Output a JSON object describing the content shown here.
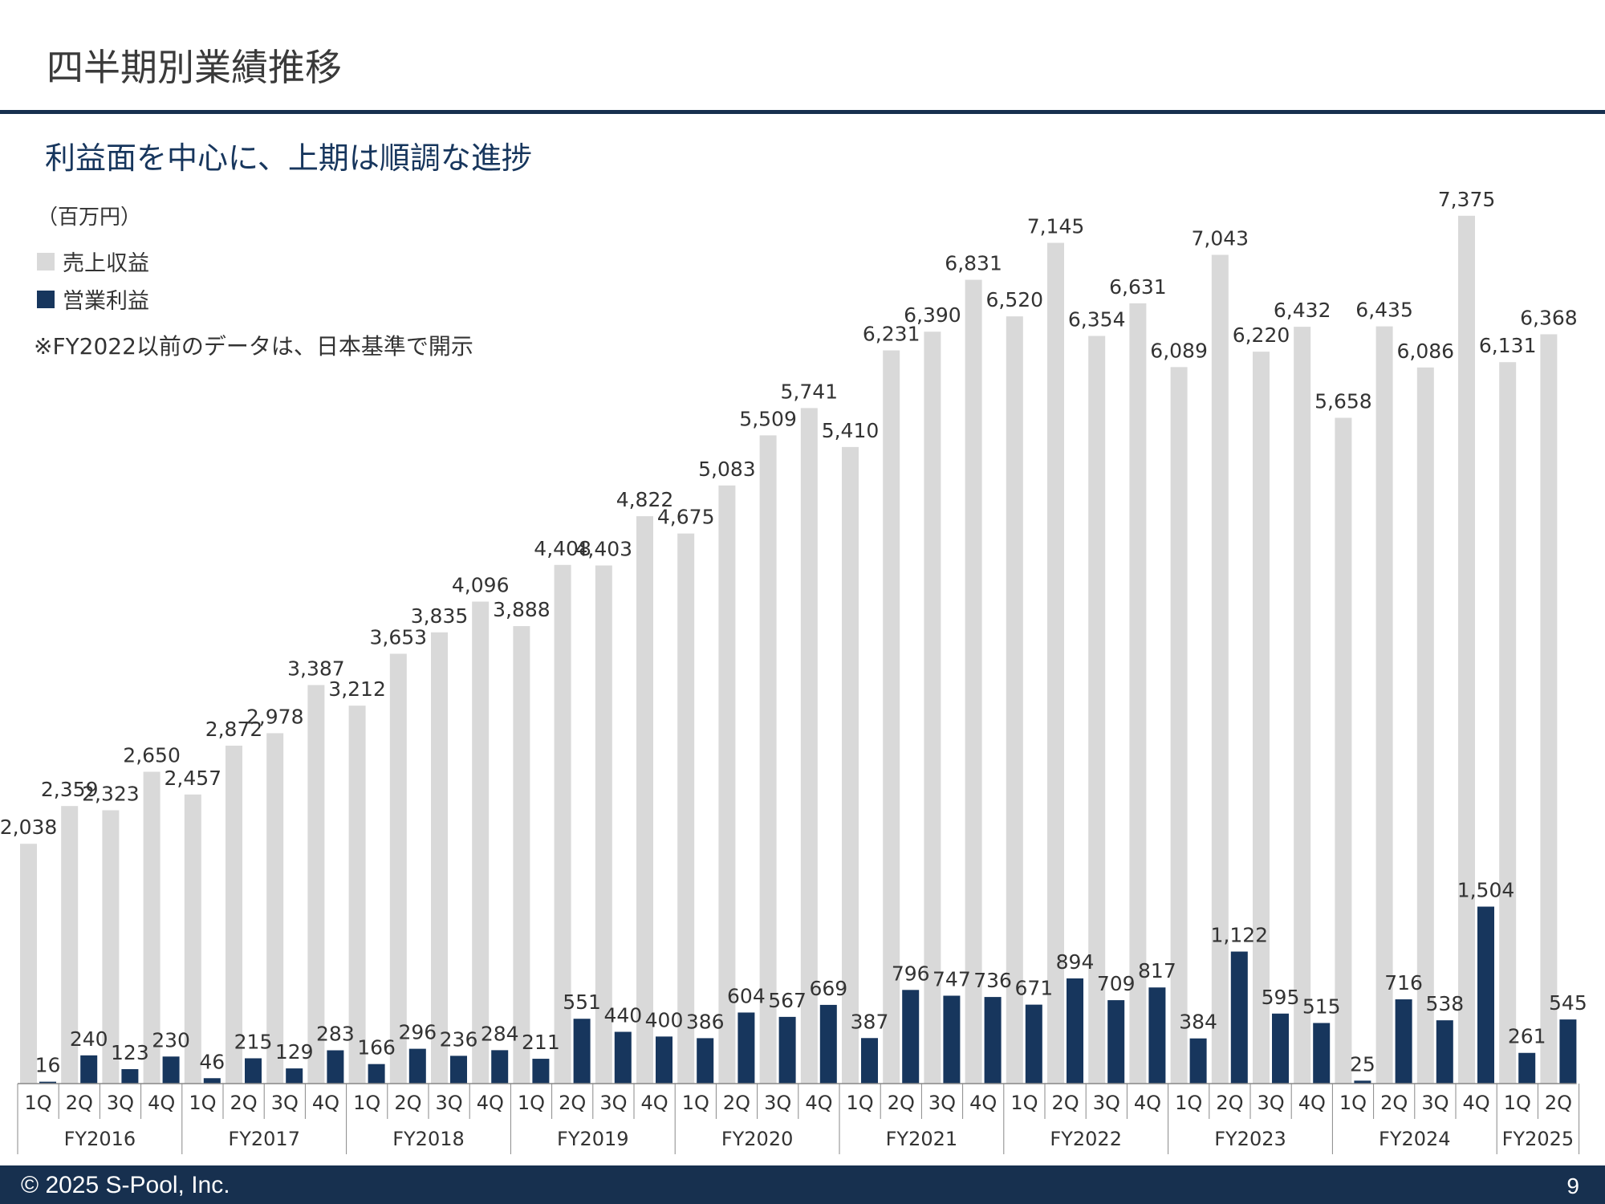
{
  "header": {
    "title": "四半期別業績推移"
  },
  "subtitle": "利益面を中心に、上期は順調な進捗",
  "unit_label": "（百万円）",
  "note": "※FY2022以前のデータは、日本基準で開示",
  "colors": {
    "revenue": "#d9d9d9",
    "operating_income": "#17365d",
    "navy": "#17304f"
  },
  "chart_data": {
    "type": "bar",
    "title": "",
    "xlabel": "",
    "ylabel": "",
    "ylim": [
      0,
      7600
    ],
    "grid": false,
    "legend_position": "top-left",
    "legend": [
      "売上収益",
      "営業利益"
    ],
    "fiscal_years": [
      {
        "label": "FY2016",
        "quarters": 4
      },
      {
        "label": "FY2017",
        "quarters": 4
      },
      {
        "label": "FY2018",
        "quarters": 4
      },
      {
        "label": "FY2019",
        "quarters": 4
      },
      {
        "label": "FY2020",
        "quarters": 4
      },
      {
        "label": "FY2021",
        "quarters": 4
      },
      {
        "label": "FY2022",
        "quarters": 4
      },
      {
        "label": "FY2023",
        "quarters": 4
      },
      {
        "label": "FY2024",
        "quarters": 4
      },
      {
        "label": "FY2025",
        "quarters": 2
      }
    ],
    "categories": [
      "1Q",
      "2Q",
      "3Q",
      "4Q",
      "1Q",
      "2Q",
      "3Q",
      "4Q",
      "1Q",
      "2Q",
      "3Q",
      "4Q",
      "1Q",
      "2Q",
      "3Q",
      "4Q",
      "1Q",
      "2Q",
      "3Q",
      "4Q",
      "1Q",
      "2Q",
      "3Q",
      "4Q",
      "1Q",
      "2Q",
      "3Q",
      "4Q",
      "1Q",
      "2Q",
      "3Q",
      "4Q",
      "1Q",
      "2Q",
      "3Q",
      "4Q",
      "1Q",
      "2Q"
    ],
    "series": [
      {
        "name": "売上収益",
        "values": [
          2038,
          2359,
          2323,
          2650,
          2457,
          2872,
          2978,
          3387,
          3212,
          3653,
          3835,
          4096,
          3888,
          4408,
          4403,
          4822,
          4675,
          5083,
          5509,
          5741,
          5410,
          6231,
          6390,
          6831,
          6520,
          7145,
          6354,
          6631,
          6089,
          7043,
          6220,
          6432,
          5658,
          6435,
          6086,
          7375,
          6131,
          6368
        ]
      },
      {
        "name": "営業利益",
        "values": [
          16,
          240,
          123,
          230,
          46,
          215,
          129,
          283,
          166,
          296,
          236,
          284,
          211,
          551,
          440,
          400,
          386,
          604,
          567,
          669,
          387,
          796,
          747,
          736,
          671,
          894,
          709,
          817,
          384,
          1122,
          595,
          515,
          25,
          716,
          538,
          1504,
          261,
          545
        ]
      }
    ]
  },
  "footer": {
    "copyright": "© 2025  S-Pool, Inc.",
    "page_number": "9"
  }
}
